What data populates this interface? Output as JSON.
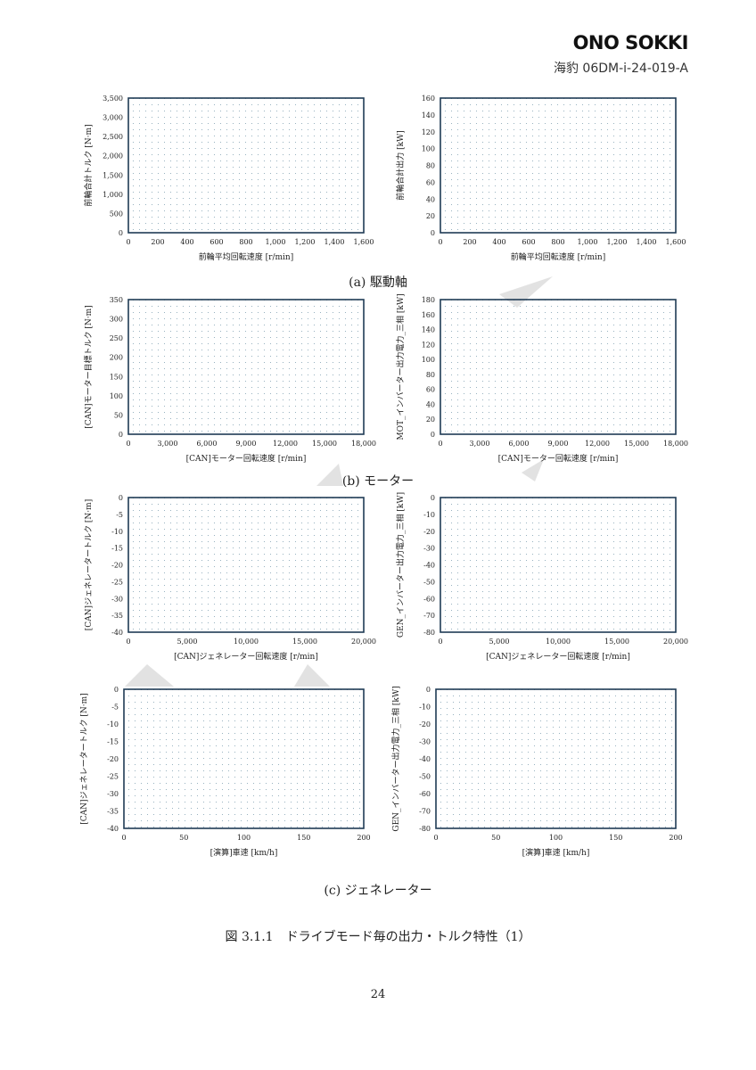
{
  "header": {
    "logo": "ONO SOKKI",
    "doc_id": "海豹 06DM-i-24-019-A"
  },
  "captions": {
    "a": "(a) 駆動軸",
    "b": "(b) モーター",
    "c": "(c) ジェネレーター"
  },
  "figure_caption": "図 3.1.1　ドライブモード毎の出力・トルク特性（1）",
  "page_number": "24",
  "chart_data": [
    {
      "type": "scatter",
      "ylabel": "前輪合計トルク [N·m]",
      "xlabel": "前輪平均回転速度 [r/min]",
      "xlim": [
        0,
        1600
      ],
      "ylim": [
        0,
        3500
      ],
      "xticks": [
        "0",
        "200",
        "400",
        "600",
        "800",
        "1,000",
        "1,200",
        "1,400",
        "1,600"
      ],
      "yticks": [
        "0",
        "500",
        "1,000",
        "1,500",
        "2,000",
        "2,500",
        "3,000",
        "3,500"
      ],
      "series": []
    },
    {
      "type": "scatter",
      "ylabel": "前輪合計出力 [kW]",
      "xlabel": "前輪平均回転速度 [r/min]",
      "xlim": [
        0,
        1600
      ],
      "ylim": [
        0,
        160
      ],
      "xticks": [
        "0",
        "200",
        "400",
        "600",
        "800",
        "1,000",
        "1,200",
        "1,400",
        "1,600"
      ],
      "yticks": [
        "0",
        "20",
        "40",
        "60",
        "80",
        "100",
        "120",
        "140",
        "160"
      ],
      "series": []
    },
    {
      "type": "scatter",
      "ylabel": "[CAN]モーター目標トルク [N·m]",
      "xlabel": "[CAN]モーター回転速度 [r/min]",
      "xlim": [
        0,
        18000
      ],
      "ylim": [
        0,
        350
      ],
      "xticks": [
        "0",
        "3,000",
        "6,000",
        "9,000",
        "12,000",
        "15,000",
        "18,000"
      ],
      "yticks": [
        "0",
        "50",
        "100",
        "150",
        "200",
        "250",
        "300",
        "350"
      ],
      "series": []
    },
    {
      "type": "scatter",
      "ylabel": "MOT_インバーター出力電力_三相 [kW]",
      "xlabel": "[CAN]モーター回転速度 [r/min]",
      "xlim": [
        0,
        18000
      ],
      "ylim": [
        0,
        180
      ],
      "xticks": [
        "0",
        "3,000",
        "6,000",
        "9,000",
        "12,000",
        "15,000",
        "18,000"
      ],
      "yticks": [
        "0",
        "20",
        "40",
        "60",
        "80",
        "100",
        "120",
        "140",
        "160",
        "180"
      ],
      "series": []
    },
    {
      "type": "scatter",
      "ylabel": "[CAN]ジェネレータートルク [N·m]",
      "xlabel": "[CAN]ジェネレーター回転速度 [r/min]",
      "xlim": [
        0,
        20000
      ],
      "ylim": [
        -40,
        0
      ],
      "xticks": [
        "0",
        "5,000",
        "10,000",
        "15,000",
        "20,000"
      ],
      "yticks": [
        "-40",
        "-35",
        "-30",
        "-25",
        "-20",
        "-15",
        "-10",
        "-5",
        "0"
      ],
      "series": []
    },
    {
      "type": "scatter",
      "ylabel": "GEN_インバーター出力電力_三相 [kW]",
      "xlabel": "[CAN]ジェネレーター回転速度 [r/min]",
      "xlim": [
        0,
        20000
      ],
      "ylim": [
        -80,
        0
      ],
      "xticks": [
        "0",
        "5,000",
        "10,000",
        "15,000",
        "20,000"
      ],
      "yticks": [
        "-80",
        "-70",
        "-60",
        "-50",
        "-40",
        "-30",
        "-20",
        "-10",
        "0"
      ],
      "series": []
    },
    {
      "type": "scatter",
      "ylabel": "[CAN]ジェネレータートルク [N·m]",
      "xlabel": "[演算]車速 [km/h]",
      "xlim": [
        0,
        200
      ],
      "ylim": [
        -40,
        0
      ],
      "xticks": [
        "0",
        "50",
        "100",
        "150",
        "200"
      ],
      "yticks": [
        "-40",
        "-35",
        "-30",
        "-25",
        "-20",
        "-15",
        "-10",
        "-5",
        "0"
      ],
      "series": []
    },
    {
      "type": "scatter",
      "ylabel": "GEN_インバーター出力電力_三相 [kW]",
      "xlabel": "[演算]車速 [km/h]",
      "xlim": [
        0,
        200
      ],
      "ylim": [
        -80,
        0
      ],
      "xticks": [
        "0",
        "50",
        "100",
        "150",
        "200"
      ],
      "yticks": [
        "-80",
        "-70",
        "-60",
        "-50",
        "-40",
        "-30",
        "-20",
        "-10",
        "0"
      ],
      "series": []
    }
  ]
}
